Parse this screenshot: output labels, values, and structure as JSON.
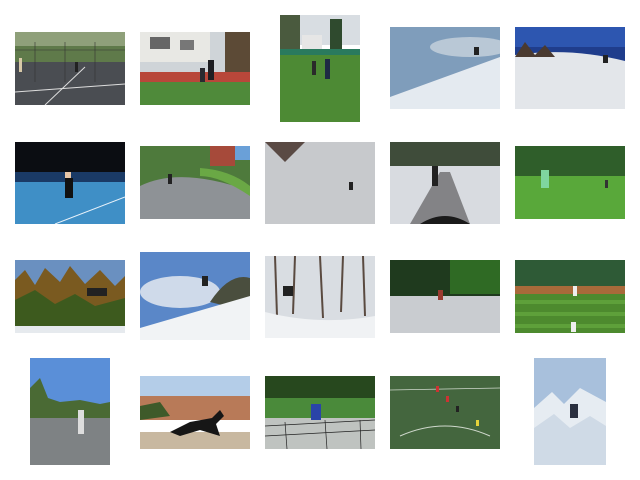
{
  "gallery": {
    "tiles": [
      {
        "subject": "tennis-court-net"
      },
      {
        "subject": "yard-soccer"
      },
      {
        "subject": "field-soccer"
      },
      {
        "subject": "snowboard-jump"
      },
      {
        "subject": "snow-slope-skier"
      },
      {
        "subject": "night-tennis"
      },
      {
        "subject": "road-skateboard"
      },
      {
        "subject": "snow-skier-small"
      },
      {
        "subject": "sidewalk-skateboard"
      },
      {
        "subject": "park-frisbee"
      },
      {
        "subject": "forest-snowboard"
      },
      {
        "subject": "sky-jump"
      },
      {
        "subject": "trees-snowboard"
      },
      {
        "subject": "court-skate"
      },
      {
        "subject": "baseball-field"
      },
      {
        "subject": "park-tennis"
      },
      {
        "subject": "desert-dog"
      },
      {
        "subject": "tennis-net-player"
      },
      {
        "subject": "soccer-field-players"
      },
      {
        "subject": "mountain-snowboard"
      }
    ]
  }
}
